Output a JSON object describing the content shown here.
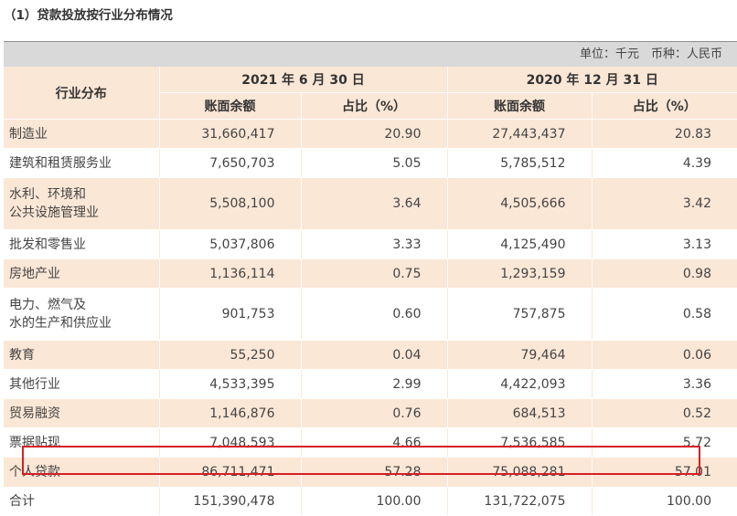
{
  "title": "（1）贷款投放按行业分布情况",
  "unit_note": "单位：千元　币种：人民币",
  "header": {
    "category": "行业分布",
    "period1": "2021 年 6 月 30 日",
    "period2": "2020 年 12 月 31 日",
    "balance": "账面余额",
    "ratio": "占比（%）"
  },
  "rows": [
    {
      "label": "制造业",
      "b1": "31,660,417",
      "r1": "20.90",
      "b2": "27,443,437",
      "r2": "20.83"
    },
    {
      "label": "建筑和租赁服务业",
      "b1": "7,650,703",
      "r1": "5.05",
      "b2": "5,785,512",
      "r2": "4.39"
    },
    {
      "label": "水利、环境和\n公共设施管理业",
      "b1": "5,508,100",
      "r1": "3.64",
      "b2": "4,505,666",
      "r2": "3.42"
    },
    {
      "label": "批发和零售业",
      "b1": "5,037,806",
      "r1": "3.33",
      "b2": "4,125,490",
      "r2": "3.13"
    },
    {
      "label": "房地产业",
      "b1": "1,136,114",
      "r1": "0.75",
      "b2": "1,293,159",
      "r2": "0.98"
    },
    {
      "label": "电力、燃气及\n水的生产和供应业",
      "b1": "901,753",
      "r1": "0.60",
      "b2": "757,875",
      "r2": "0.58"
    },
    {
      "label": "教育",
      "b1": "55,250",
      "r1": "0.04",
      "b2": "79,464",
      "r2": "0.06"
    },
    {
      "label": "其他行业",
      "b1": "4,533,395",
      "r1": "2.99",
      "b2": "4,422,093",
      "r2": "3.36"
    },
    {
      "label": "贸易融资",
      "b1": "1,146,876",
      "r1": "0.76",
      "b2": "684,513",
      "r2": "0.52"
    },
    {
      "label": "票据贴现",
      "b1": "7,048,593",
      "r1": "4.66",
      "b2": "7,536,585",
      "r2": "5.72"
    },
    {
      "label": "个人贷款",
      "b1": "86,711,471",
      "r1": "57.28",
      "b2": "75,088,281",
      "r2": "57.01"
    },
    {
      "label": "合计",
      "b1": "151,390,478",
      "r1": "100.00",
      "b2": "131,722,075",
      "r2": "100.00"
    }
  ]
}
